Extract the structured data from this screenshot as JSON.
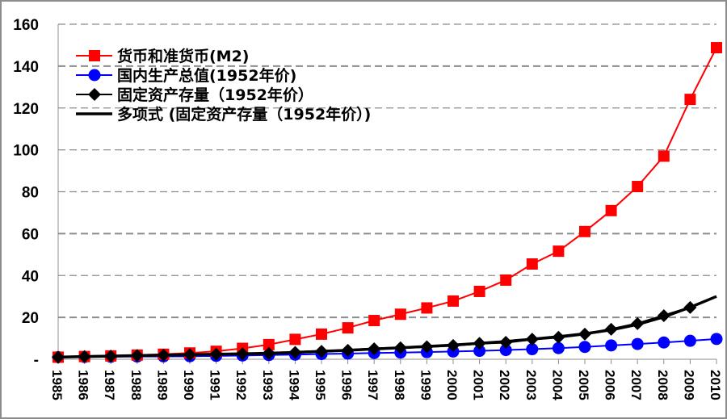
{
  "chart_data": {
    "type": "line",
    "title": "",
    "xlabel": "",
    "ylabel": "",
    "ylim": [
      0,
      160
    ],
    "yticks": [
      0,
      20,
      40,
      60,
      80,
      100,
      120,
      140,
      160
    ],
    "ytick_labels": [
      "-",
      "20",
      "40",
      "60",
      "80",
      "100",
      "120",
      "140",
      "160"
    ],
    "grid": "horizontal dashed",
    "legend_position": "top-left",
    "x": [
      "1985",
      "1986",
      "1987",
      "1988",
      "1989",
      "1990",
      "1991",
      "1992",
      "1993",
      "1994",
      "1995",
      "1996",
      "1997",
      "1998",
      "1999",
      "2000",
      "2001",
      "2002",
      "2003",
      "2004",
      "2005",
      "2006",
      "2007",
      "2008",
      "2009",
      "2010"
    ],
    "series": [
      {
        "name": "货币和准货币(M2)",
        "color": "#ff0000",
        "marker": "square",
        "values": [
          1.0,
          1.3,
          1.6,
          2.0,
          2.4,
          3.0,
          3.8,
          5.2,
          7.0,
          9.5,
          12.0,
          15.0,
          18.5,
          21.5,
          24.5,
          27.8,
          32.4,
          37.8,
          45.5,
          51.6,
          61.0,
          71.0,
          82.5,
          97.0,
          124.1,
          148.8
        ]
      },
      {
        "name": "国内生产总值(1952年价)",
        "color": "#0000ff",
        "marker": "circle",
        "values": [
          1.0,
          1.1,
          1.2,
          1.3,
          1.35,
          1.4,
          1.6,
          1.8,
          2.0,
          2.2,
          2.5,
          2.7,
          3.0,
          3.2,
          3.4,
          3.7,
          4.0,
          4.4,
          4.8,
          5.3,
          5.9,
          6.6,
          7.3,
          8.0,
          8.8,
          9.7
        ]
      },
      {
        "name": "固定资产存量（1952年价）",
        "color": "#000000",
        "marker": "diamond",
        "values": [
          1.0,
          1.3,
          1.5,
          1.8,
          2.0,
          2.2,
          2.4,
          2.6,
          2.8,
          3.3,
          3.8,
          4.3,
          5.0,
          5.5,
          6.0,
          6.6,
          7.6,
          8.1,
          9.6,
          10.5,
          12.0,
          14.3,
          17.0,
          20.8,
          24.7,
          null
        ]
      },
      {
        "name": "多项式 (固定资产存量（1952年价）)",
        "color": "#000000",
        "marker": "none",
        "trendline": true,
        "values": [
          1.0,
          1.3,
          1.5,
          1.8,
          2.0,
          2.2,
          2.4,
          2.6,
          2.9,
          3.3,
          3.8,
          4.3,
          4.9,
          5.5,
          6.1,
          6.8,
          7.6,
          8.5,
          9.6,
          10.8,
          12.2,
          14.0,
          16.6,
          20.2,
          24.8,
          30.0
        ]
      }
    ]
  }
}
